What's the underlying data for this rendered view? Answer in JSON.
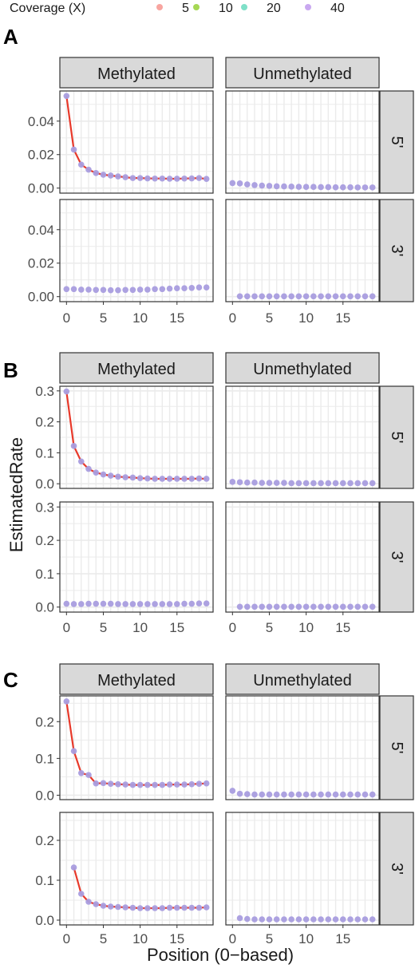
{
  "legend": {
    "title": "Coverage (X)",
    "entries": [
      {
        "label": "5",
        "color": "#F8A5A0"
      },
      {
        "label": "10",
        "color": "#A6D854"
      },
      {
        "label": "20",
        "color": "#7FE0C8"
      },
      {
        "label": "40",
        "color": "#C9A8F0"
      }
    ]
  },
  "xlabel": "Position (0−based)",
  "ylabel": "EstimatedRate",
  "column_labels": [
    "Methylated",
    "Unmethylated"
  ],
  "row_labels": [
    "5'",
    "3'"
  ],
  "colors": {
    "line": "#E8392A",
    "point": "#A99DDF",
    "strip": "#D9D9D9",
    "grid": "#EBEBEB"
  },
  "chart_data": [
    {
      "type": "scatter",
      "panel_label": "A",
      "x_ticks": [
        0,
        5,
        10,
        15
      ],
      "y_ticks": [
        0.0,
        0.02,
        0.04
      ],
      "y_tick_labels": [
        "0.00",
        "0.02",
        "0.04"
      ],
      "xlim": [
        -0.9,
        19.9
      ],
      "ylim": [
        -0.003,
        0.058
      ],
      "grid": true,
      "facets": [
        {
          "column": "Methylated",
          "row": "5'",
          "fit_line": true,
          "x": [
            0,
            1,
            2,
            3,
            4,
            5,
            6,
            7,
            8,
            9,
            10,
            11,
            12,
            13,
            14,
            15,
            16,
            17,
            18,
            19
          ],
          "y": [
            0.055,
            0.023,
            0.014,
            0.011,
            0.009,
            0.008,
            0.0075,
            0.007,
            0.0065,
            0.006,
            0.006,
            0.0058,
            0.0057,
            0.0057,
            0.0056,
            0.0056,
            0.0057,
            0.0058,
            0.006,
            0.0055
          ]
        },
        {
          "column": "Unmethylated",
          "row": "5'",
          "fit_line": false,
          "x": [
            0,
            1,
            2,
            3,
            4,
            5,
            6,
            7,
            8,
            9,
            10,
            11,
            12,
            13,
            14,
            15,
            16,
            17,
            18,
            19
          ],
          "y": [
            0.003,
            0.0028,
            0.0022,
            0.0018,
            0.0015,
            0.0013,
            0.0011,
            0.001,
            0.0009,
            0.0008,
            0.0007,
            0.0007,
            0.0006,
            0.0006,
            0.0005,
            0.0005,
            0.0005,
            0.0004,
            0.0004,
            0.0004
          ]
        },
        {
          "column": "Methylated",
          "row": "3'",
          "fit_line": false,
          "x": [
            0,
            1,
            2,
            3,
            4,
            5,
            6,
            7,
            8,
            9,
            10,
            11,
            12,
            13,
            14,
            15,
            16,
            17,
            18,
            19
          ],
          "y": [
            0.0045,
            0.0045,
            0.0042,
            0.0042,
            0.004,
            0.004,
            0.0038,
            0.0038,
            0.004,
            0.004,
            0.0042,
            0.0042,
            0.0045,
            0.0045,
            0.0048,
            0.005,
            0.005,
            0.0052,
            0.0055,
            0.0055
          ]
        },
        {
          "column": "Unmethylated",
          "row": "3'",
          "fit_line": false,
          "x": [
            1,
            2,
            3,
            4,
            5,
            6,
            7,
            8,
            9,
            10,
            11,
            12,
            13,
            14,
            15,
            16,
            17,
            18,
            19
          ],
          "y": [
            0.0002,
            0.0002,
            0.0002,
            0.0002,
            0.0002,
            0.0002,
            0.0002,
            0.0002,
            0.0002,
            0.0002,
            0.0002,
            0.0002,
            0.0002,
            0.0002,
            0.0002,
            0.0002,
            0.0002,
            0.0002,
            0.0002
          ]
        }
      ]
    },
    {
      "type": "scatter",
      "panel_label": "B",
      "x_ticks": [
        0,
        5,
        10,
        15
      ],
      "y_ticks": [
        0.0,
        0.1,
        0.2,
        0.3
      ],
      "y_tick_labels": [
        "0.0",
        "0.1",
        "0.2",
        "0.3"
      ],
      "xlim": [
        -0.9,
        19.9
      ],
      "ylim": [
        -0.015,
        0.315
      ],
      "grid": true,
      "facets": [
        {
          "column": "Methylated",
          "row": "5'",
          "fit_line": true,
          "x": [
            0,
            1,
            2,
            3,
            4,
            5,
            6,
            7,
            8,
            9,
            10,
            11,
            12,
            13,
            14,
            15,
            16,
            17,
            18,
            19
          ],
          "y": [
            0.298,
            0.122,
            0.072,
            0.048,
            0.036,
            0.03,
            0.026,
            0.023,
            0.021,
            0.02,
            0.018,
            0.017,
            0.016,
            0.016,
            0.016,
            0.016,
            0.016,
            0.016,
            0.017,
            0.016
          ]
        },
        {
          "column": "Unmethylated",
          "row": "5'",
          "fit_line": false,
          "x": [
            0,
            1,
            2,
            3,
            4,
            5,
            6,
            7,
            8,
            9,
            10,
            11,
            12,
            13,
            14,
            15,
            16,
            17,
            18,
            19
          ],
          "y": [
            0.006,
            0.005,
            0.004,
            0.004,
            0.003,
            0.003,
            0.003,
            0.003,
            0.002,
            0.002,
            0.002,
            0.002,
            0.002,
            0.002,
            0.002,
            0.002,
            0.002,
            0.002,
            0.002,
            0.002
          ]
        },
        {
          "column": "Methylated",
          "row": "3'",
          "fit_line": false,
          "x": [
            0,
            1,
            2,
            3,
            4,
            5,
            6,
            7,
            8,
            9,
            10,
            11,
            12,
            13,
            14,
            15,
            16,
            17,
            18,
            19
          ],
          "y": [
            0.01,
            0.009,
            0.009,
            0.01,
            0.01,
            0.01,
            0.01,
            0.009,
            0.009,
            0.009,
            0.009,
            0.009,
            0.009,
            0.009,
            0.009,
            0.009,
            0.01,
            0.01,
            0.011,
            0.011
          ]
        },
        {
          "column": "Unmethylated",
          "row": "3'",
          "fit_line": false,
          "x": [
            1,
            2,
            3,
            4,
            5,
            6,
            7,
            8,
            9,
            10,
            11,
            12,
            13,
            14,
            15,
            16,
            17,
            18,
            19
          ],
          "y": [
            0.001,
            0.001,
            0.001,
            0.001,
            0.001,
            0.001,
            0.001,
            0.001,
            0.001,
            0.001,
            0.001,
            0.001,
            0.001,
            0.001,
            0.001,
            0.001,
            0.001,
            0.001,
            0.001
          ]
        }
      ]
    },
    {
      "type": "scatter",
      "panel_label": "C",
      "x_ticks": [
        0,
        5,
        10,
        15
      ],
      "y_ticks": [
        0.0,
        0.1,
        0.2
      ],
      "y_tick_labels": [
        "0.0",
        "0.1",
        "0.2"
      ],
      "xlim": [
        -0.9,
        19.9
      ],
      "ylim": [
        -0.012,
        0.27
      ],
      "grid": true,
      "facets": [
        {
          "column": "Methylated",
          "row": "5'",
          "fit_line": true,
          "x": [
            0,
            1,
            2,
            3,
            4,
            5,
            6,
            7,
            8,
            9,
            10,
            11,
            12,
            13,
            14,
            15,
            16,
            17,
            18,
            19
          ],
          "y": [
            0.255,
            0.12,
            0.06,
            0.055,
            0.032,
            0.033,
            0.031,
            0.03,
            0.029,
            0.028,
            0.028,
            0.028,
            0.028,
            0.028,
            0.029,
            0.029,
            0.029,
            0.03,
            0.031,
            0.032
          ]
        },
        {
          "column": "Unmethylated",
          "row": "5'",
          "fit_line": false,
          "x": [
            0,
            1,
            2,
            3,
            4,
            5,
            6,
            7,
            8,
            9,
            10,
            11,
            12,
            13,
            14,
            15,
            16,
            17,
            18,
            19
          ],
          "y": [
            0.012,
            0.004,
            0.003,
            0.002,
            0.002,
            0.002,
            0.002,
            0.002,
            0.002,
            0.002,
            0.002,
            0.002,
            0.002,
            0.002,
            0.002,
            0.002,
            0.002,
            0.002,
            0.002,
            0.002
          ]
        },
        {
          "column": "Methylated",
          "row": "3'",
          "fit_line": true,
          "x": [
            1,
            2,
            3,
            4,
            5,
            6,
            7,
            8,
            9,
            10,
            11,
            12,
            13,
            14,
            15,
            16,
            17,
            18,
            19
          ],
          "y": [
            0.132,
            0.066,
            0.046,
            0.04,
            0.036,
            0.034,
            0.033,
            0.032,
            0.031,
            0.03,
            0.03,
            0.03,
            0.03,
            0.031,
            0.031,
            0.031,
            0.031,
            0.031,
            0.032
          ]
        },
        {
          "column": "Unmethylated",
          "row": "3'",
          "fit_line": false,
          "x": [
            1,
            2,
            3,
            4,
            5,
            6,
            7,
            8,
            9,
            10,
            11,
            12,
            13,
            14,
            15,
            16,
            17,
            18,
            19
          ],
          "y": [
            0.005,
            0.003,
            0.002,
            0.002,
            0.002,
            0.002,
            0.002,
            0.002,
            0.002,
            0.002,
            0.002,
            0.002,
            0.002,
            0.002,
            0.002,
            0.002,
            0.002,
            0.002,
            0.002
          ]
        }
      ]
    }
  ]
}
